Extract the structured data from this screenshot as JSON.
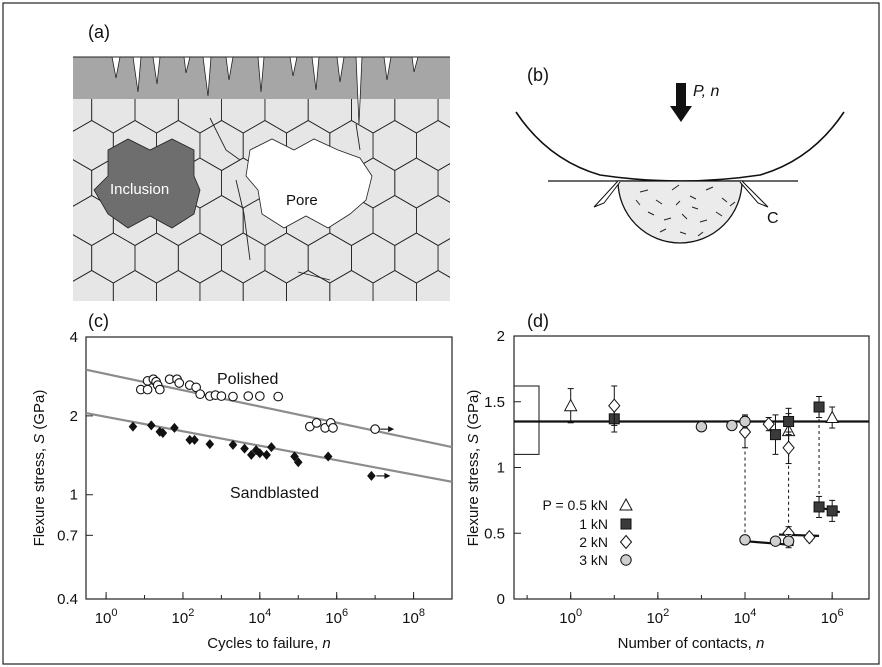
{
  "panels": {
    "a": {
      "label": "(a)",
      "inclusion_label": "Inclusion",
      "pore_label": "Pore"
    },
    "b": {
      "label": "(b)",
      "load_label": "P, n",
      "crack_label": "C"
    },
    "c": {
      "label": "(c)",
      "series_labels": [
        "Polished",
        "Sandblasted"
      ],
      "ylabel_prefix": "Flexure stress, ",
      "ylabel_var": "S",
      "ylabel_suffix": " (GPa)",
      "xlabel_prefix": "Cycles to failure, ",
      "xlabel_var": "n"
    },
    "d": {
      "label": "(d)",
      "ylabel_prefix": "Flexure stress, ",
      "ylabel_var": "S",
      "ylabel_suffix": " (GPa)",
      "xlabel_prefix": "Number of contacts, ",
      "xlabel_var": "n",
      "legend_entries": [
        "P = 0.5 kN",
        "1 kN",
        "2 kN",
        "3 kN"
      ]
    }
  },
  "colors": {
    "fit_line_c": "#8c8c8c",
    "fit_line_d": "#111111",
    "inclusion": "#6e6e6e",
    "grain": "#e6e6e6",
    "surface_layer": "#a6a6a6",
    "filled_marker": "#111111",
    "circle_marker_d": "#cfcfcf"
  },
  "chart_data": [
    {
      "panel": "c",
      "type": "scatter",
      "xscale": "log",
      "yscale": "log",
      "xlim": [
        0.3,
        1000000000
      ],
      "ylim": [
        0.4,
        4
      ],
      "xticks": [
        1,
        100,
        10000,
        1000000,
        100000000
      ],
      "xtick_labels": [
        {
          "base": "10",
          "exp": "0"
        },
        {
          "base": "10",
          "exp": "2"
        },
        {
          "base": "10",
          "exp": "4"
        },
        {
          "base": "10",
          "exp": "6"
        },
        {
          "base": "10",
          "exp": "8"
        }
      ],
      "yticks": [
        0.4,
        0.7,
        1,
        2,
        4
      ],
      "ytick_labels": [
        "0.4",
        "0.7",
        "1",
        "2",
        "4"
      ],
      "series": [
        {
          "name": "Polished",
          "marker": "open-circle",
          "points": [
            [
              8,
              2.52
            ],
            [
              12,
              2.72
            ],
            [
              12,
              2.52
            ],
            [
              17,
              2.76
            ],
            [
              20,
              2.7
            ],
            [
              22,
              2.62
            ],
            [
              25,
              2.52
            ],
            [
              45,
              2.76
            ],
            [
              70,
              2.76
            ],
            [
              80,
              2.67
            ],
            [
              150,
              2.62
            ],
            [
              220,
              2.57
            ],
            [
              280,
              2.42
            ],
            [
              500,
              2.38
            ],
            [
              700,
              2.4
            ],
            [
              1000,
              2.38
            ],
            [
              2000,
              2.37
            ],
            [
              5000,
              2.38
            ],
            [
              10000,
              2.38
            ],
            [
              30000,
              2.37
            ],
            [
              200000,
              1.82
            ],
            [
              300000,
              1.88
            ],
            [
              500000,
              1.8
            ],
            [
              700000,
              1.88
            ],
            [
              800000,
              1.8
            ],
            [
              10000000,
              1.78
            ]
          ],
          "runout_points": [
            [
              10000000,
              1.78
            ]
          ],
          "fit": [
            [
              0.3,
              3.0
            ],
            [
              1000000000,
              1.52
            ]
          ]
        },
        {
          "name": "Sandblasted",
          "marker": "filled-diamond",
          "points": [
            [
              5,
              1.82
            ],
            [
              15,
              1.84
            ],
            [
              25,
              1.74
            ],
            [
              30,
              1.72
            ],
            [
              60,
              1.8
            ],
            [
              150,
              1.62
            ],
            [
              200,
              1.62
            ],
            [
              500,
              1.56
            ],
            [
              2000,
              1.55
            ],
            [
              4000,
              1.5
            ],
            [
              6000,
              1.42
            ],
            [
              8000,
              1.48
            ],
            [
              10000,
              1.44
            ],
            [
              15000,
              1.42
            ],
            [
              20000,
              1.52
            ],
            [
              80000,
              1.4
            ],
            [
              100000,
              1.33
            ],
            [
              600000,
              1.4
            ],
            [
              8000000,
              1.18
            ]
          ],
          "runout_points": [
            [
              8000000,
              1.18
            ]
          ],
          "fit": [
            [
              0.3,
              2.05
            ],
            [
              1000000000,
              1.12
            ]
          ]
        }
      ]
    },
    {
      "panel": "d",
      "type": "scatter",
      "xscale": "log",
      "xlim": [
        0.05,
        7000000
      ],
      "ylim": [
        0,
        2
      ],
      "xticks": [
        1,
        100,
        10000,
        1000000
      ],
      "xtick_labels": [
        {
          "base": "10",
          "exp": "0"
        },
        {
          "base": "10",
          "exp": "2"
        },
        {
          "base": "10",
          "exp": "4"
        },
        {
          "base": "10",
          "exp": "6"
        }
      ],
      "yticks": [
        0,
        0.5,
        1,
        1.5,
        2
      ],
      "ytick_labels": [
        "0",
        "0.5",
        "1",
        "1.5",
        "2"
      ],
      "inert_strength_band": [
        1.1,
        1.62
      ],
      "upper_fit": [
        [
          0.05,
          1.35
        ],
        [
          7000000,
          1.35
        ]
      ],
      "series": [
        {
          "name": "P = 0.5 kN",
          "marker": "open-triangle",
          "points": [
            {
              "x": 1,
              "y": 1.47,
              "err": 0.13
            },
            {
              "x": 100000,
              "y": 1.28,
              "err": 0.13
            },
            {
              "x": 1000000,
              "y": 1.38,
              "err": 0.08
            }
          ]
        },
        {
          "name": "1 kN",
          "marker": "filled-square",
          "points": [
            {
              "x": 10,
              "y": 1.37,
              "err": 0.1
            },
            {
              "x": 50000,
              "y": 1.25,
              "err": 0.15
            },
            {
              "x": 100000,
              "y": 1.35,
              "err": 0.1
            },
            {
              "x": 500000,
              "y": 1.46,
              "err": 0.08
            },
            {
              "x": 500000,
              "y": 0.7,
              "err": 0.08
            },
            {
              "x": 1000000,
              "y": 0.67,
              "err": 0.08
            }
          ]
        },
        {
          "name": "2 kN",
          "marker": "open-diamond",
          "points": [
            {
              "x": 10,
              "y": 1.47,
              "err": 0.15
            },
            {
              "x": 10000,
              "y": 1.27,
              "err": 0.12
            },
            {
              "x": 35000,
              "y": 1.33,
              "err": 0.05
            },
            {
              "x": 100000,
              "y": 1.15,
              "err": 0.12
            },
            {
              "x": 100000,
              "y": 0.5,
              "err": 0.05
            },
            {
              "x": 300000,
              "y": 0.47,
              "err": 0.03
            }
          ]
        },
        {
          "name": "3 kN",
          "marker": "filled-circle",
          "points": [
            {
              "x": 1000,
              "y": 1.31,
              "err": 0.03
            },
            {
              "x": 5000,
              "y": 1.32,
              "err": 0.03
            },
            {
              "x": 10000,
              "y": 1.35,
              "err": 0.05
            },
            {
              "x": 10000,
              "y": 0.45,
              "err": 0.03
            },
            {
              "x": 50000,
              "y": 0.44,
              "err": 0.03
            },
            {
              "x": 100000,
              "y": 0.44,
              "err": 0.05
            }
          ]
        }
      ],
      "drop_lines": [
        {
          "x": 10000,
          "from": 1.35,
          "to": 0.45
        },
        {
          "x": 100000,
          "from": 1.15,
          "to": 0.5
        },
        {
          "x": 500000,
          "from": 1.46,
          "to": 0.7
        }
      ],
      "lower_fits": [
        [
          [
            10000,
            0.44
          ],
          [
            130000,
            0.41
          ]
        ],
        [
          [
            60000,
            0.49
          ],
          [
            500000,
            0.48
          ]
        ],
        [
          [
            450000,
            0.7
          ],
          [
            1500000,
            0.66
          ]
        ]
      ]
    }
  ]
}
